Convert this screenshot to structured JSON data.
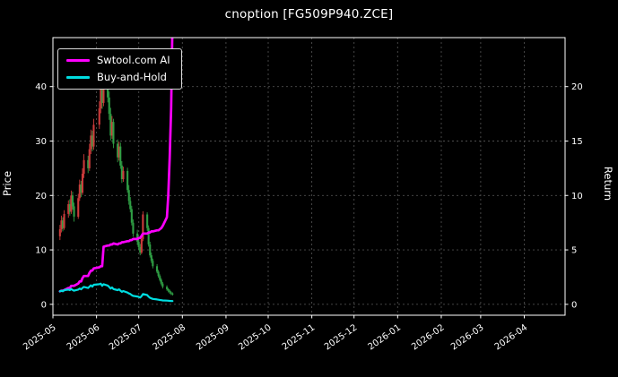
{
  "window": {
    "background": "#000000"
  },
  "chart_data": {
    "type": "candlestick+line",
    "title": "cnoption [FG509P940.ZCE]",
    "ylabel_left": "Price",
    "ylabel_right": "Return",
    "grid": true,
    "legend_position": "top-left",
    "x_range": [
      "2025-05-01",
      "2026-04-30"
    ],
    "x_ticks": [
      {
        "label": "2025-05",
        "date": "2025-05-01"
      },
      {
        "label": "2025-06",
        "date": "2025-06-01"
      },
      {
        "label": "2025-07",
        "date": "2025-07-01"
      },
      {
        "label": "2025-08",
        "date": "2025-08-01"
      },
      {
        "label": "2025-09",
        "date": "2025-09-01"
      },
      {
        "label": "2025-10",
        "date": "2025-10-01"
      },
      {
        "label": "2025-11",
        "date": "2025-11-01"
      },
      {
        "label": "2025-12",
        "date": "2025-12-01"
      },
      {
        "label": "2026-01",
        "date": "2026-01-01"
      },
      {
        "label": "2026-02",
        "date": "2026-02-01"
      },
      {
        "label": "2026-03",
        "date": "2026-03-01"
      },
      {
        "label": "2026-04",
        "date": "2026-04-01"
      }
    ],
    "price_ylim": [
      -2,
      49
    ],
    "return_ylim": [
      -1,
      24.5
    ],
    "price_ticks": [
      0,
      10,
      20,
      30,
      40
    ],
    "return_ticks": [
      0,
      5,
      10,
      15,
      20
    ],
    "colors": {
      "background": "#000000",
      "text": "#ffffff",
      "grid": "#4d4d4d",
      "spine": "#ffffff",
      "up": "#cc3b3b",
      "down": "#2f9e44"
    },
    "candles": {
      "dates": [
        "2025-05-06",
        "2025-05-07",
        "2025-05-08",
        "2025-05-09",
        "2025-05-12",
        "2025-05-13",
        "2025-05-14",
        "2025-05-15",
        "2025-05-16",
        "2025-05-19",
        "2025-05-20",
        "2025-05-21",
        "2025-05-22",
        "2025-05-23",
        "2025-05-26",
        "2025-05-27",
        "2025-05-28",
        "2025-05-29",
        "2025-05-30",
        "2025-06-03",
        "2025-06-04",
        "2025-06-05",
        "2025-06-06",
        "2025-06-09",
        "2025-06-10",
        "2025-06-11",
        "2025-06-12",
        "2025-06-13",
        "2025-06-16",
        "2025-06-17",
        "2025-06-18",
        "2025-06-19",
        "2025-06-20",
        "2025-06-23",
        "2025-06-24",
        "2025-06-25",
        "2025-06-26",
        "2025-06-27",
        "2025-06-30",
        "2025-07-01",
        "2025-07-02",
        "2025-07-03",
        "2025-07-04",
        "2025-07-07",
        "2025-07-08",
        "2025-07-09",
        "2025-07-10",
        "2025-07-11",
        "2025-07-14",
        "2025-07-15",
        "2025-07-16",
        "2025-07-17",
        "2025-07-18",
        "2025-07-21",
        "2025-07-22",
        "2025-07-23",
        "2025-07-24",
        "2025-07-25"
      ],
      "open": [
        12.5,
        13.8,
        15.4,
        14.0,
        16.6,
        18.4,
        17.0,
        20.0,
        18.0,
        16.1,
        19.5,
        22.0,
        20.5,
        24.0,
        26.5,
        25.0,
        28.5,
        31.0,
        29.0,
        33.0,
        36.0,
        40.0,
        37.0,
        41.0,
        38.0,
        35.0,
        31.0,
        33.5,
        29.5,
        27.0,
        29.0,
        25.5,
        23.0,
        24.5,
        21.0,
        19.0,
        17.5,
        15.0,
        13.0,
        11.5,
        10.5,
        9.5,
        12.0,
        16.5,
        14.0,
        11.0,
        9.0,
        8.0,
        7.0,
        6.0,
        5.2,
        4.5,
        3.8,
        3.2,
        2.8,
        2.5,
        2.2,
        2.0
      ],
      "high": [
        14.6,
        16.3,
        16.0,
        17.3,
        19.1,
        19.3,
        20.9,
        20.7,
        18.7,
        20.3,
        22.9,
        22.7,
        25.0,
        27.6,
        27.3,
        29.5,
        32.1,
        31.9,
        34.1,
        37.3,
        41.6,
        41.2,
        44.0,
        42.1,
        39.1,
        36.1,
        34.6,
        34.1,
        30.3,
        29.9,
        29.7,
        26.3,
        25.3,
        25.1,
        21.9,
        19.7,
        18.1,
        15.6,
        13.7,
        12.3,
        11.1,
        12.5,
        17.1,
        16.9,
        14.5,
        11.5,
        9.5,
        8.4,
        7.4,
        6.3,
        5.5,
        4.8,
        4.1,
        3.5,
        3.0,
        2.7,
        2.4,
        2.2
      ],
      "low": [
        11.8,
        13.2,
        13.4,
        13.7,
        15.9,
        16.3,
        16.6,
        17.4,
        15.2,
        15.7,
        19.0,
        19.7,
        20.1,
        23.2,
        24.1,
        24.5,
        27.6,
        28.1,
        28.4,
        32.2,
        35.1,
        35.9,
        36.4,
        37.1,
        33.9,
        30.1,
        30.4,
        28.7,
        26.1,
        26.4,
        24.9,
        22.3,
        22.5,
        20.5,
        18.3,
        16.9,
        14.5,
        12.4,
        10.9,
        10.0,
        9.0,
        9.2,
        11.6,
        13.5,
        10.6,
        8.6,
        7.6,
        6.6,
        5.7,
        4.9,
        4.2,
        3.5,
        2.9,
        2.5,
        2.2,
        1.9,
        1.7,
        1.6
      ],
      "close": [
        13.8,
        15.4,
        14.0,
        16.6,
        18.4,
        17.0,
        20.0,
        18.0,
        16.1,
        19.5,
        22.0,
        20.5,
        24.0,
        26.5,
        25.0,
        28.5,
        31.0,
        29.0,
        33.0,
        36.0,
        40.0,
        37.0,
        41.0,
        38.0,
        35.0,
        31.0,
        33.5,
        29.5,
        27.0,
        29.0,
        25.5,
        23.0,
        24.5,
        21.0,
        19.0,
        17.5,
        15.0,
        13.0,
        11.5,
        10.5,
        9.5,
        12.0,
        16.5,
        14.0,
        11.0,
        9.0,
        8.0,
        7.0,
        6.0,
        5.2,
        4.5,
        3.8,
        3.2,
        2.8,
        2.5,
        2.2,
        2.0,
        1.8
      ]
    },
    "series": [
      {
        "key": "ai",
        "name": "Swtool.com AI",
        "color": "#ff00ff",
        "axis": "return",
        "values": [
          1.2,
          1.25,
          1.25,
          1.3,
          1.5,
          1.5,
          1.7,
          1.7,
          1.7,
          1.9,
          2.1,
          2.1,
          2.4,
          2.6,
          2.6,
          2.9,
          3.1,
          3.1,
          3.3,
          3.4,
          3.5,
          3.5,
          5.3,
          5.4,
          5.4,
          5.5,
          5.5,
          5.6,
          5.5,
          5.6,
          5.6,
          5.7,
          5.7,
          5.8,
          5.8,
          5.9,
          5.9,
          6.0,
          6.0,
          6.1,
          6.1,
          6.3,
          6.5,
          6.5,
          6.6,
          6.6,
          6.7,
          6.7,
          6.8,
          6.8,
          6.9,
          7.0,
          7.2,
          8.0,
          10.0,
          13.5,
          18.0,
          26.0
        ]
      },
      {
        "key": "bh",
        "name": "Buy-and-Hold",
        "color": "#00dde0",
        "axis": "return",
        "values": [
          1.2,
          1.25,
          1.2,
          1.3,
          1.35,
          1.3,
          1.4,
          1.32,
          1.25,
          1.35,
          1.45,
          1.38,
          1.5,
          1.6,
          1.5,
          1.62,
          1.75,
          1.62,
          1.8,
          1.85,
          1.9,
          1.7,
          1.85,
          1.72,
          1.6,
          1.45,
          1.55,
          1.4,
          1.3,
          1.38,
          1.25,
          1.15,
          1.22,
          1.08,
          1.0,
          0.95,
          0.85,
          0.78,
          0.72,
          0.68,
          0.62,
          0.75,
          0.95,
          0.85,
          0.7,
          0.6,
          0.55,
          0.5,
          0.45,
          0.42,
          0.4,
          0.38,
          0.36,
          0.34,
          0.33,
          0.32,
          0.31,
          0.3
        ]
      }
    ]
  }
}
